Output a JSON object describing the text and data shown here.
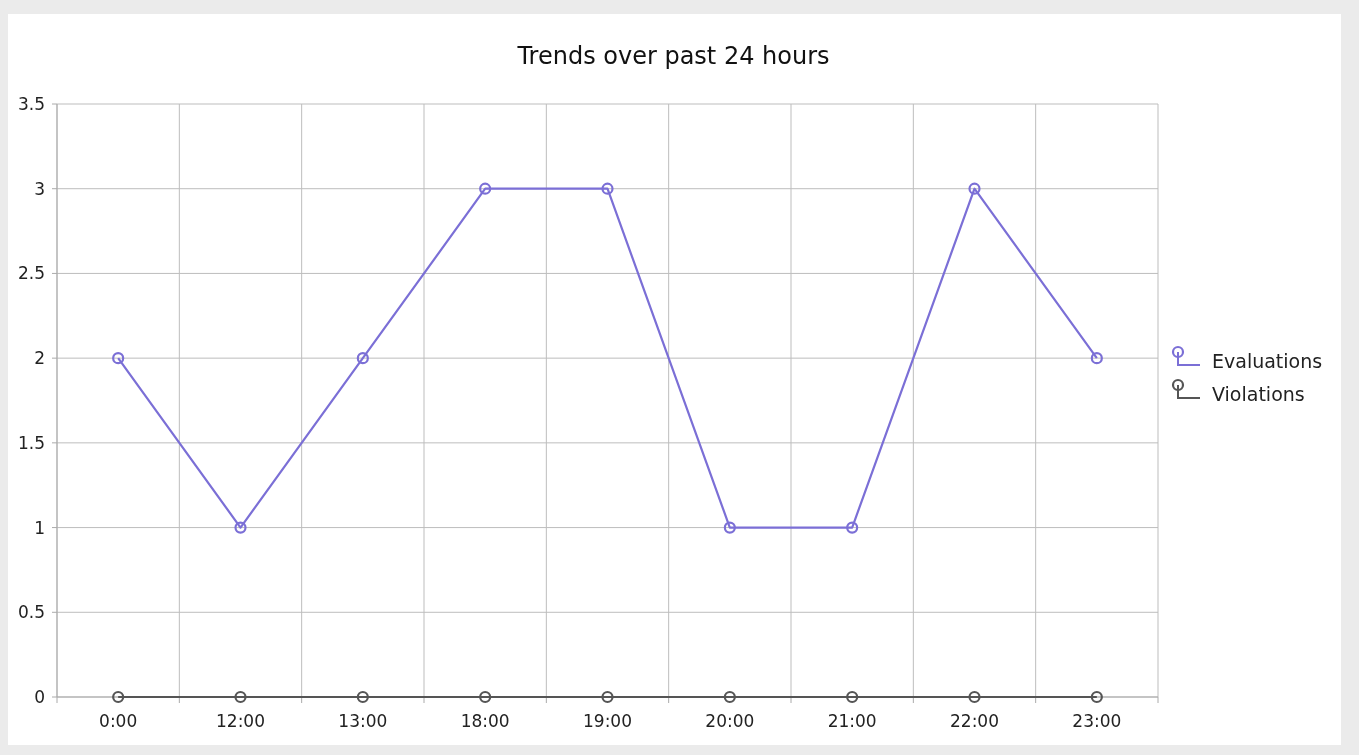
{
  "chart_data": {
    "type": "line",
    "title": "Trends over past 24 hours",
    "categories": [
      "0:00",
      "12:00",
      "13:00",
      "18:00",
      "19:00",
      "20:00",
      "21:00",
      "22:00",
      "23:00"
    ],
    "series": [
      {
        "name": "Evaluations",
        "color": "#7b6fd6",
        "values": [
          2,
          1,
          2,
          3,
          3,
          1,
          1,
          3,
          2
        ]
      },
      {
        "name": "Violations",
        "color": "#555555",
        "values": [
          0,
          0,
          0,
          0,
          0,
          0,
          0,
          0,
          0
        ]
      }
    ],
    "ylim": [
      0,
      3.5
    ],
    "yticks": [
      0,
      0.5,
      1,
      1.5,
      2,
      2.5,
      3,
      3.5
    ],
    "grid": true,
    "legend": "right",
    "marker": "circle",
    "line_style": "solid"
  }
}
